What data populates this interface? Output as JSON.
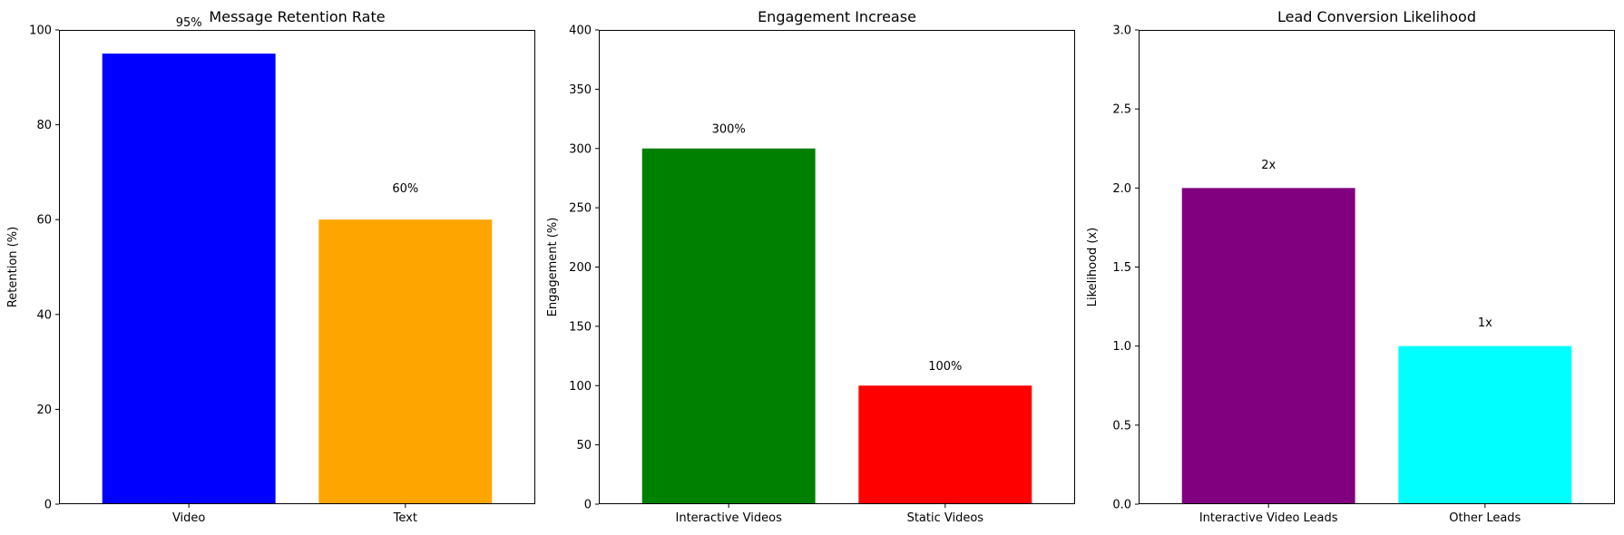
{
  "chart_data": [
    {
      "type": "bar",
      "title": "Message Retention Rate",
      "xlabel": "",
      "ylabel": "Retention (%)",
      "categories": [
        "Video",
        "Text"
      ],
      "values": [
        95,
        60
      ],
      "data_labels": [
        "95%",
        "60%"
      ],
      "colors": [
        "#0000ff",
        "#ffa500"
      ],
      "ylim": [
        0,
        100
      ],
      "yticks": [
        0,
        20,
        40,
        60,
        80,
        100
      ],
      "ytick_labels": [
        "0",
        "20",
        "40",
        "60",
        "80",
        "100"
      ],
      "grid": false,
      "label_offset": 5
    },
    {
      "type": "bar",
      "title": "Engagement Increase",
      "xlabel": "",
      "ylabel": "Engagement (%)",
      "categories": [
        "Interactive Videos",
        "Static Videos"
      ],
      "values": [
        300,
        100
      ],
      "data_labels": [
        "300%",
        "100%"
      ],
      "colors": [
        "#008000",
        "#ff0000"
      ],
      "ylim": [
        0,
        400
      ],
      "yticks": [
        0,
        50,
        100,
        150,
        200,
        250,
        300,
        350,
        400
      ],
      "ytick_labels": [
        "0",
        "50",
        "100",
        "150",
        "200",
        "250",
        "300",
        "350",
        "400"
      ],
      "grid": false,
      "label_offset": 10
    },
    {
      "type": "bar",
      "title": "Lead Conversion Likelihood",
      "xlabel": "",
      "ylabel": "Likelihood (x)",
      "categories": [
        "Interactive Video Leads",
        "Other Leads"
      ],
      "values": [
        2,
        1
      ],
      "data_labels": [
        "2x",
        "1x"
      ],
      "colors": [
        "#800080",
        "#00ffff"
      ],
      "ylim": [
        0,
        3
      ],
      "yticks": [
        0,
        0.5,
        1.0,
        1.5,
        2.0,
        2.5,
        3.0
      ],
      "ytick_labels": [
        "0.0",
        "0.5",
        "1.0",
        "1.5",
        "2.0",
        "2.5",
        "3.0"
      ],
      "grid": false,
      "label_offset": 0.1
    }
  ]
}
